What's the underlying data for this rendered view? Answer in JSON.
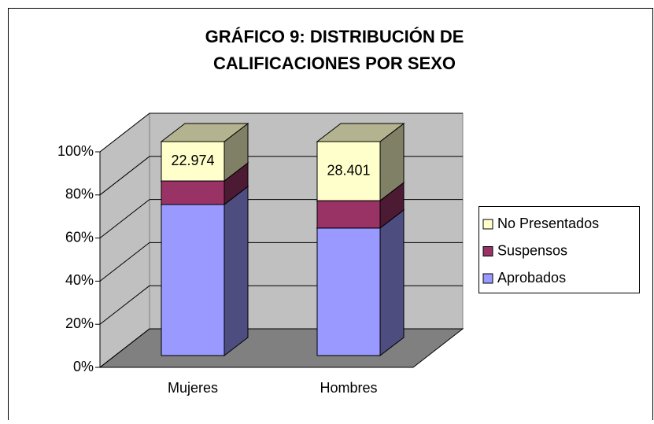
{
  "chart_data": {
    "type": "bar3d_stacked_percent",
    "title": "GRÁFICO 9: DISTRIBUCIÓN DE",
    "subtitle": "CALIFICACIONES POR SEXO",
    "categories": [
      "Mujeres",
      "Hombres"
    ],
    "series": [
      {
        "name": "Aprobados",
        "color": "#9999ff",
        "values": [
          88170,
          61330
        ]
      },
      {
        "name": "Suspensos",
        "color": "#993366",
        "values": [
          13740,
          13170
        ]
      },
      {
        "name": "No Presentados",
        "color": "#ffffcc",
        "values": [
          22974,
          28401
        ],
        "value_labels": [
          "22.974",
          "28.401"
        ]
      }
    ],
    "ylim": [
      0,
      100
    ],
    "yticks": [
      {
        "value": 0,
        "label": "0%"
      },
      {
        "value": 20,
        "label": "20%"
      },
      {
        "value": 40,
        "label": "40%"
      },
      {
        "value": 60,
        "label": "60%"
      },
      {
        "value": 80,
        "label": "80%"
      },
      {
        "value": 100,
        "label": "100%"
      }
    ],
    "grid": true,
    "legend": "right"
  }
}
